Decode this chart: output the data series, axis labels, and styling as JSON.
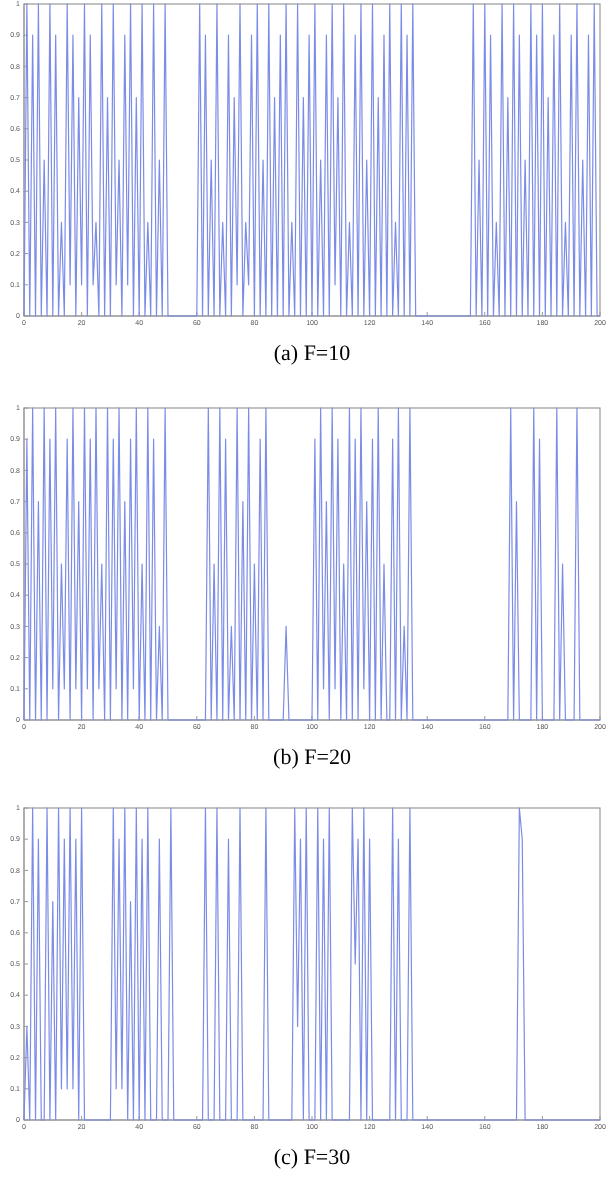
{
  "chart_data": [
    {
      "type": "line",
      "title": "(a) F=10",
      "xlim": [
        0,
        200
      ],
      "ylim": [
        0,
        1
      ],
      "xticks": [
        0,
        20,
        40,
        60,
        80,
        100,
        120,
        140,
        160,
        180,
        200
      ],
      "yticks": [
        0,
        0.1,
        0.2,
        0.3,
        0.4,
        0.5,
        0.6,
        0.7,
        0.8,
        0.9,
        1
      ],
      "x": [
        0,
        1,
        2,
        3,
        4,
        5,
        6,
        7,
        8,
        9,
        10,
        11,
        12,
        13,
        14,
        15,
        16,
        17,
        18,
        19,
        20,
        21,
        22,
        23,
        24,
        25,
        26,
        27,
        28,
        29,
        30,
        31,
        32,
        33,
        34,
        35,
        36,
        37,
        38,
        39,
        40,
        41,
        42,
        43,
        44,
        45,
        46,
        47,
        48,
        49,
        50,
        60,
        61,
        62,
        63,
        64,
        65,
        66,
        67,
        68,
        69,
        70,
        71,
        72,
        73,
        74,
        75,
        76,
        77,
        78,
        79,
        80,
        81,
        82,
        83,
        84,
        85,
        86,
        87,
        88,
        89,
        90,
        91,
        92,
        93,
        94,
        95,
        96,
        97,
        98,
        99,
        100,
        101,
        102,
        103,
        104,
        105,
        106,
        107,
        108,
        109,
        110,
        111,
        112,
        113,
        114,
        115,
        116,
        117,
        118,
        119,
        120,
        121,
        122,
        123,
        124,
        125,
        126,
        127,
        128,
        129,
        130,
        131,
        132,
        133,
        134,
        135,
        136,
        155,
        156,
        157,
        158,
        159,
        160,
        161,
        162,
        163,
        164,
        165,
        166,
        167,
        168,
        169,
        170,
        171,
        172,
        173,
        174,
        175,
        176,
        177,
        178,
        179,
        180,
        181,
        182,
        183,
        184,
        185,
        186,
        187,
        188,
        189,
        190,
        191,
        192,
        193,
        194,
        195,
        196,
        197,
        198,
        199,
        200
      ],
      "series": [
        {
          "color": "#7b8ce6",
          "values": [
            0,
            1,
            0,
            0.9,
            0,
            1,
            0,
            0.5,
            0,
            1,
            0,
            0.9,
            0,
            0.3,
            0,
            1,
            0.1,
            0.9,
            0,
            0.7,
            0.1,
            1,
            0,
            0.9,
            0.1,
            0.3,
            0,
            1,
            0,
            0.7,
            0,
            1,
            0.1,
            0.5,
            0,
            0.9,
            0.1,
            1,
            0,
            0.7,
            0,
            1,
            0,
            0.3,
            0,
            1,
            0,
            0.5,
            0,
            1,
            0,
            0,
            1,
            0,
            0.9,
            0,
            0.5,
            0,
            1,
            0,
            0.3,
            0,
            0.9,
            0,
            0.7,
            0.1,
            1,
            0,
            0.3,
            0.1,
            0.9,
            0,
            1,
            0,
            0.5,
            0,
            1,
            0,
            0.7,
            0,
            0.9,
            0,
            1,
            0,
            0.3,
            0,
            1,
            0,
            0.7,
            0,
            0.9,
            0,
            1,
            0,
            0.5,
            0,
            0.9,
            0,
            1,
            0.1,
            0.7,
            0,
            1,
            0,
            0.3,
            0,
            0.9,
            0,
            1,
            0,
            0.5,
            0,
            1,
            0,
            0.7,
            0,
            0.9,
            0,
            1,
            0,
            0.3,
            0,
            1,
            0,
            0.9,
            0,
            1,
            0,
            0,
            1,
            0,
            0.5,
            0,
            1,
            0,
            0.9,
            0,
            0.3,
            0,
            1,
            0,
            0.7,
            0,
            1,
            0,
            0.9,
            0,
            0.5,
            0,
            1,
            0,
            0.9,
            0,
            1,
            0,
            0.7,
            0,
            0.9,
            0,
            1,
            0,
            0.3,
            0,
            0.9,
            0,
            1,
            0,
            0.5,
            0,
            0.9,
            0,
            1,
            0,
            0
          ]
        }
      ]
    },
    {
      "type": "line",
      "title": "(b) F=20",
      "xlim": [
        0,
        200
      ],
      "ylim": [
        0,
        1
      ],
      "xticks": [
        0,
        20,
        40,
        60,
        80,
        100,
        120,
        140,
        160,
        180,
        200
      ],
      "yticks": [
        0,
        0.1,
        0.2,
        0.3,
        0.4,
        0.5,
        0.6,
        0.7,
        0.8,
        0.9,
        1
      ],
      "x": [
        0,
        1,
        2,
        3,
        4,
        5,
        6,
        7,
        8,
        9,
        10,
        11,
        12,
        13,
        14,
        15,
        16,
        17,
        18,
        19,
        20,
        21,
        22,
        23,
        24,
        25,
        26,
        27,
        28,
        29,
        30,
        31,
        32,
        33,
        34,
        35,
        36,
        37,
        38,
        39,
        40,
        41,
        42,
        43,
        44,
        45,
        46,
        47,
        48,
        49,
        50,
        63,
        64,
        65,
        66,
        67,
        68,
        69,
        70,
        71,
        72,
        73,
        74,
        75,
        76,
        77,
        78,
        79,
        80,
        81,
        82,
        83,
        84,
        85,
        86,
        90,
        91,
        92,
        100,
        101,
        102,
        103,
        104,
        105,
        106,
        107,
        108,
        109,
        110,
        111,
        112,
        113,
        114,
        115,
        116,
        117,
        118,
        119,
        120,
        121,
        122,
        123,
        124,
        125,
        126,
        127,
        128,
        129,
        130,
        131,
        132,
        133,
        134,
        135,
        136,
        168,
        169,
        170,
        171,
        172,
        176,
        177,
        178,
        179,
        180,
        184,
        185,
        186,
        187,
        188,
        191,
        192,
        193,
        194,
        200
      ],
      "series": [
        {
          "color": "#7b8ce6",
          "values": [
            0,
            0.9,
            0,
            1,
            0,
            0.7,
            0,
            1,
            0,
            0.9,
            0.1,
            1,
            0,
            0.5,
            0.1,
            0.9,
            0,
            1,
            0.1,
            0.7,
            0,
            1,
            0.1,
            0.9,
            0,
            1,
            0.1,
            0.5,
            0,
            1,
            0,
            0.9,
            0.1,
            1,
            0,
            0.7,
            0,
            0.9,
            0.1,
            1,
            0,
            0.5,
            0,
            1,
            0,
            0.9,
            0,
            0.3,
            0,
            1,
            0,
            0,
            1,
            0,
            0.5,
            0,
            1,
            0,
            0.9,
            0,
            0.3,
            0,
            1,
            0,
            0.7,
            0,
            1,
            0,
            0.5,
            0,
            0.9,
            0,
            1,
            0,
            0,
            0,
            0.3,
            0,
            0,
            0.9,
            0,
            1,
            0.1,
            0.7,
            0,
            1,
            0.1,
            0.9,
            0,
            0.5,
            0,
            1,
            0,
            0.9,
            0,
            1,
            0.1,
            0.7,
            0,
            0.9,
            0,
            1,
            0,
            0.5,
            0,
            0,
            0.9,
            0,
            1,
            0,
            0.3,
            0,
            1,
            0,
            0,
            0,
            1,
            0,
            0.7,
            0,
            0,
            1,
            0,
            0.9,
            0,
            0,
            1,
            0,
            0.5,
            0,
            0,
            1,
            0,
            0,
            0
          ]
        }
      ]
    },
    {
      "type": "line",
      "title": "(c) F=30",
      "xlim": [
        0,
        200
      ],
      "ylim": [
        0,
        1
      ],
      "xticks": [
        0,
        20,
        40,
        60,
        80,
        100,
        120,
        140,
        160,
        180,
        200
      ],
      "yticks": [
        0,
        0.1,
        0.2,
        0.3,
        0.4,
        0.5,
        0.6,
        0.7,
        0.8,
        0.9,
        1
      ],
      "x": [
        0,
        1,
        2,
        3,
        4,
        5,
        6,
        7,
        8,
        9,
        10,
        11,
        12,
        13,
        14,
        15,
        16,
        17,
        18,
        19,
        20,
        21,
        30,
        31,
        32,
        33,
        34,
        35,
        36,
        37,
        38,
        39,
        40,
        41,
        42,
        43,
        44,
        46,
        47,
        48,
        50,
        51,
        52,
        62,
        63,
        64,
        66,
        67,
        68,
        70,
        71,
        72,
        74,
        75,
        76,
        83,
        84,
        85,
        93,
        94,
        95,
        96,
        97,
        98,
        99,
        101,
        102,
        103,
        104,
        105,
        106,
        107,
        113,
        114,
        115,
        116,
        117,
        118,
        119,
        120,
        121,
        127,
        128,
        129,
        130,
        131,
        133,
        134,
        135,
        171,
        172,
        173,
        174,
        200
      ],
      "series": [
        {
          "color": "#7b8ce6",
          "values": [
            0,
            0.3,
            0,
            1,
            0,
            0.9,
            0,
            0,
            1,
            0,
            0.7,
            0,
            1,
            0.1,
            0.9,
            0.1,
            1,
            0.1,
            0.9,
            0,
            1,
            0,
            0,
            1,
            0.1,
            0.9,
            0.1,
            1,
            0,
            0.7,
            0,
            1,
            0,
            0.9,
            0,
            1,
            0,
            0,
            0.9,
            0,
            0,
            1,
            0,
            0,
            1,
            0,
            0,
            1,
            0,
            0,
            0.9,
            0,
            0,
            1,
            0,
            0,
            1,
            0,
            0,
            1,
            0.3,
            0.9,
            0,
            1,
            0,
            0,
            1,
            0,
            0.9,
            0,
            1,
            0,
            0,
            1,
            0.5,
            0.9,
            0,
            1,
            0,
            0.9,
            0,
            0,
            1,
            0,
            0.9,
            0,
            0,
            1,
            0,
            0,
            1,
            0.9,
            0,
            0
          ]
        }
      ]
    }
  ]
}
